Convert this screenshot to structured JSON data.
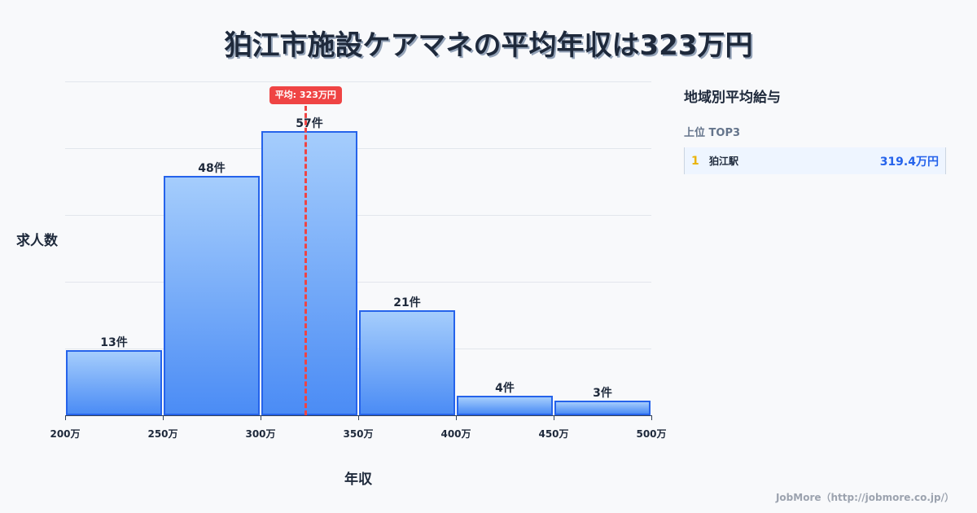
{
  "title": "狛江市施設ケアマネの平均年収は323万円",
  "chart_data": {
    "type": "bar",
    "title": "狛江市施設ケアマネの平均年収は323万円",
    "xlabel": "年収",
    "ylabel": "求人数",
    "categories": [
      "200万-250万",
      "250万-300万",
      "300万-350万",
      "350万-400万",
      "400万-450万",
      "450万-500万"
    ],
    "x_ticks": [
      "200万",
      "250万",
      "300万",
      "350万",
      "400万",
      "450万",
      "500万"
    ],
    "values": [
      13,
      48,
      57,
      21,
      4,
      3
    ],
    "value_labels": [
      "13件",
      "48件",
      "57件",
      "21件",
      "4件",
      "3件"
    ],
    "ylim": [
      0,
      67
    ],
    "grid": true,
    "mean_line": {
      "value": 323,
      "label": "平均: 323万円",
      "color": "#ef4444"
    },
    "bar_color": "#4b8cf5",
    "bar_border_color": "#2563eb"
  },
  "ranking": {
    "title": "地域別平均給与",
    "subtitle": "上位 TOP3",
    "items": [
      {
        "rank": "1",
        "name": "狛江駅",
        "value": "319.4万円"
      }
    ]
  },
  "footer": "JobMore（http://jobmore.co.jp/）"
}
